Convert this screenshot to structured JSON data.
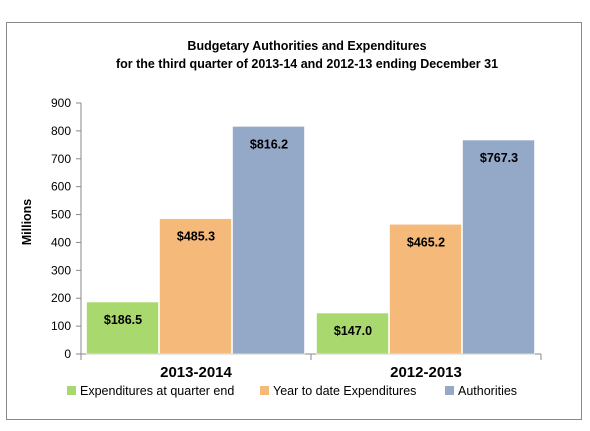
{
  "chart_data": {
    "type": "bar",
    "title_line1": "Budgetary Authorities and Expenditures",
    "title_line2": "for the third quarter of 2013-14 and 2012-13 ending December 31",
    "ylabel": "Millions",
    "xlabel": "",
    "ylim": [
      0,
      900
    ],
    "yticks": [
      0,
      100,
      200,
      300,
      400,
      500,
      600,
      700,
      800,
      900
    ],
    "grid": false,
    "legend_position": "bottom",
    "categories": [
      "2013-2014",
      "2012-2013"
    ],
    "series": [
      {
        "name": "Expenditures at quarter end",
        "color": "#a9d86e",
        "values": [
          186.5,
          147.0
        ],
        "labels": [
          "$186.5",
          "$147.0"
        ]
      },
      {
        "name": "Year to date Expenditures",
        "color": "#f5b97a",
        "values": [
          485.3,
          465.2
        ],
        "labels": [
          "$485.3",
          "$465.2"
        ]
      },
      {
        "name": "Authorities",
        "color": "#94a8c8",
        "values": [
          816.2,
          767.3
        ],
        "labels": [
          "$816.2",
          "$767.3"
        ]
      }
    ]
  }
}
